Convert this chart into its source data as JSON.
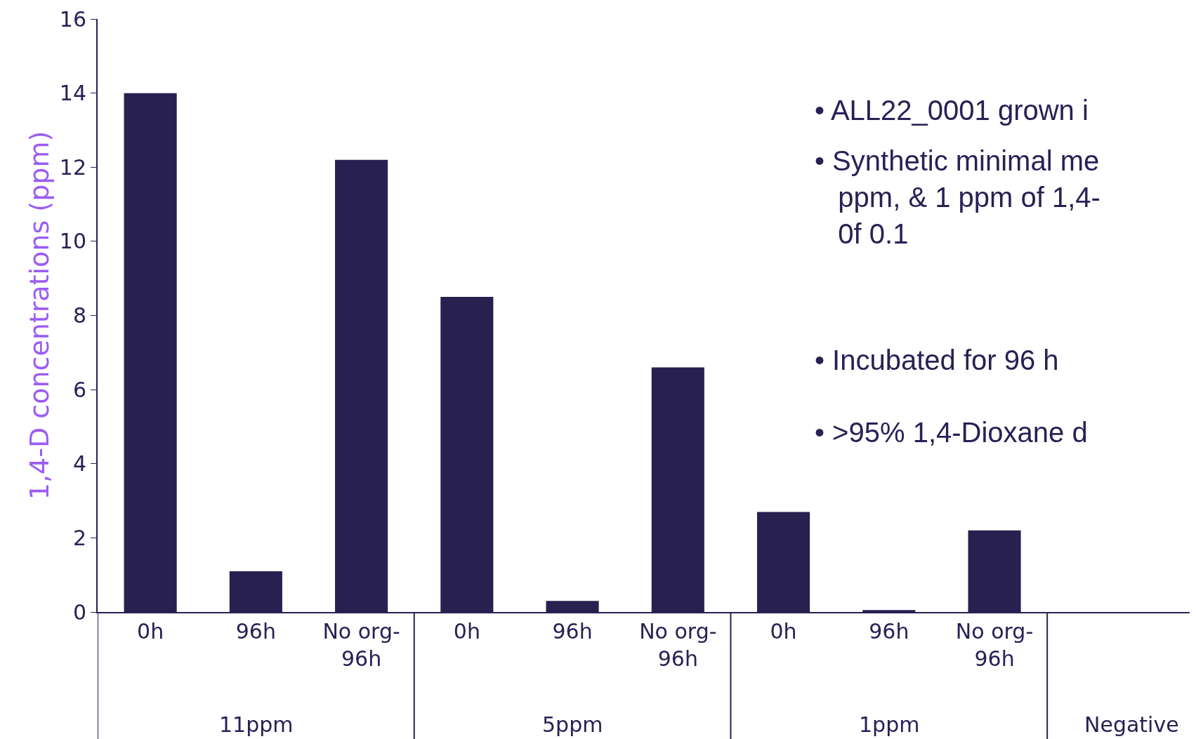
{
  "chart_data": {
    "type": "bar",
    "ylabel": "1,4-D concentrations (ppm)",
    "categories": [
      "0h",
      "96h",
      "No org-\n96h",
      "0h",
      "96h",
      "No org-\n96h",
      "0h",
      "96h",
      "No org-\n96h",
      null
    ],
    "values": [
      14.0,
      1.1,
      12.2,
      8.5,
      0.3,
      6.6,
      2.7,
      0.05,
      2.2,
      null
    ],
    "color": "#28204f",
    "ylim": [
      0,
      16
    ],
    "yticks": [
      0,
      2,
      4,
      6,
      8,
      10,
      12,
      14,
      16
    ],
    "legend": false,
    "annotations": [
      "11ppm",
      "5ppm",
      "1ppm",
      "Negative",
      "• ALL22_0001 grown i",
      "• Synthetic minimal me\n   ppm, & 1 ppm of 1,4-\n   0f 0.1",
      "• Incubated for 96 h",
      "• >95% 1,4-Dioxane d"
    ]
  }
}
